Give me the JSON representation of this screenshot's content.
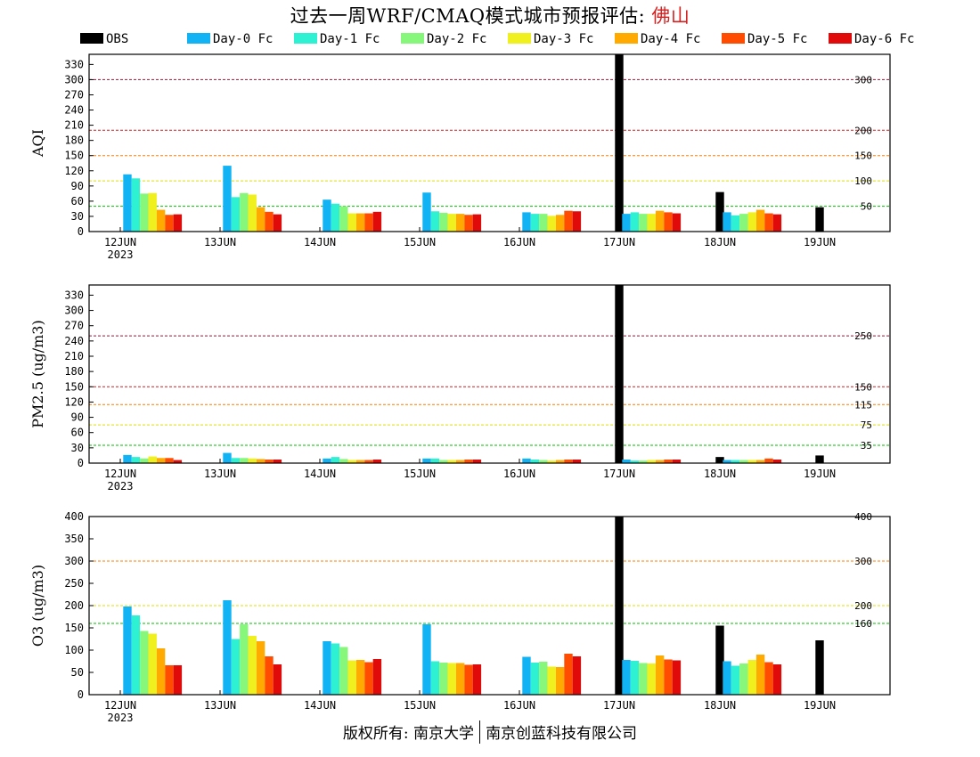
{
  "title": {
    "prefix": "过去一周WRF/CMAQ模式城市预报评估: ",
    "city": "佛山"
  },
  "footer": {
    "left": "版权所有: 南京大学",
    "right": "南京创蓝科技有限公司"
  },
  "colors": {
    "OBS": "#000000",
    "Day-0 Fc": "#12b3f5",
    "Day-1 Fc": "#2ef0d2",
    "Day-2 Fc": "#86f77a",
    "Day-3 Fc": "#f0f01e",
    "Day-4 Fc": "#ffaa00",
    "Day-5 Fc": "#ff4c00",
    "Day-6 Fc": "#e00a0a"
  },
  "legend": [
    "OBS",
    "Day-0 Fc",
    "Day-1 Fc",
    "Day-2 Fc",
    "Day-3 Fc",
    "Day-4 Fc",
    "Day-5 Fc",
    "Day-6 Fc"
  ],
  "chart_data": [
    {
      "type": "bar",
      "ylabel": "AQI",
      "ylim": [
        0,
        350
      ],
      "yticks": [
        0,
        30,
        60,
        90,
        120,
        150,
        180,
        210,
        240,
        270,
        300,
        330
      ],
      "categories": [
        "12JUN",
        "13JUN",
        "14JUN",
        "15JUN",
        "16JUN",
        "17JUN",
        "18JUN",
        "19JUN"
      ],
      "year_label": "2023",
      "ref_lines": [
        {
          "value": 300,
          "label": "300",
          "color": "#8b1a3a"
        },
        {
          "value": 200,
          "label": "200",
          "color": "#d02020"
        },
        {
          "value": 150,
          "label": "150",
          "color": "#ff7f00"
        },
        {
          "value": 100,
          "label": "100",
          "color": "#e0e000"
        },
        {
          "value": 50,
          "label": "50",
          "color": "#00c000"
        }
      ],
      "series": [
        {
          "name": "OBS",
          "values": [
            null,
            null,
            null,
            null,
            null,
            360,
            78,
            48
          ]
        },
        {
          "name": "Day-0 Fc",
          "values": [
            113,
            130,
            63,
            77,
            38,
            35,
            38,
            null
          ]
        },
        {
          "name": "Day-1 Fc",
          "values": [
            105,
            68,
            55,
            40,
            35,
            38,
            32,
            null
          ]
        },
        {
          "name": "Day-2 Fc",
          "values": [
            75,
            76,
            50,
            37,
            35,
            35,
            35,
            null
          ]
        },
        {
          "name": "Day-3 Fc",
          "values": [
            76,
            73,
            36,
            35,
            31,
            35,
            38,
            null
          ]
        },
        {
          "name": "Day-4 Fc",
          "values": [
            43,
            48,
            36,
            35,
            33,
            41,
            43,
            null
          ]
        },
        {
          "name": "Day-5 Fc",
          "values": [
            33,
            39,
            36,
            33,
            41,
            38,
            36,
            null
          ]
        },
        {
          "name": "Day-6 Fc",
          "values": [
            34,
            34,
            39,
            34,
            40,
            36,
            34,
            null
          ]
        }
      ]
    },
    {
      "type": "bar",
      "ylabel": "PM2.5 (ug/m3)",
      "ylim": [
        0,
        350
      ],
      "yticks": [
        0,
        30,
        60,
        90,
        120,
        150,
        180,
        210,
        240,
        270,
        300,
        330
      ],
      "categories": [
        "12JUN",
        "13JUN",
        "14JUN",
        "15JUN",
        "16JUN",
        "17JUN",
        "18JUN",
        "19JUN"
      ],
      "year_label": "2023",
      "ref_lines": [
        {
          "value": 250,
          "label": "250",
          "color": "#8b1a3a"
        },
        {
          "value": 150,
          "label": "150",
          "color": "#d02020"
        },
        {
          "value": 115,
          "label": "115",
          "color": "#ff7f00"
        },
        {
          "value": 75,
          "label": "75",
          "color": "#e0e000"
        },
        {
          "value": 35,
          "label": "35",
          "color": "#00c000"
        }
      ],
      "series": [
        {
          "name": "OBS",
          "values": [
            null,
            null,
            null,
            null,
            null,
            360,
            12,
            15
          ]
        },
        {
          "name": "Day-0 Fc",
          "values": [
            16,
            20,
            9,
            9,
            9,
            7,
            6,
            null
          ]
        },
        {
          "name": "Day-1 Fc",
          "values": [
            12,
            10,
            12,
            9,
            7,
            5,
            6,
            null
          ]
        },
        {
          "name": "Day-2 Fc",
          "values": [
            9,
            10,
            8,
            6,
            6,
            5,
            6,
            null
          ]
        },
        {
          "name": "Day-3 Fc",
          "values": [
            13,
            9,
            6,
            6,
            5,
            6,
            6,
            null
          ]
        },
        {
          "name": "Day-4 Fc",
          "values": [
            10,
            8,
            6,
            6,
            6,
            6,
            6,
            null
          ]
        },
        {
          "name": "Day-5 Fc",
          "values": [
            10,
            7,
            6,
            7,
            7,
            7,
            9,
            null
          ]
        },
        {
          "name": "Day-6 Fc",
          "values": [
            6,
            7,
            7,
            7,
            7,
            7,
            7,
            null
          ]
        }
      ]
    },
    {
      "type": "bar",
      "ylabel": "O3 (ug/m3)",
      "ylim": [
        0,
        400
      ],
      "yticks": [
        0,
        50,
        100,
        150,
        200,
        250,
        300,
        350,
        400
      ],
      "categories": [
        "12JUN",
        "13JUN",
        "14JUN",
        "15JUN",
        "16JUN",
        "17JUN",
        "18JUN",
        "19JUN"
      ],
      "year_label": "2023",
      "ref_lines": [
        {
          "value": 400,
          "label": "400",
          "color": "#d02020"
        },
        {
          "value": 300,
          "label": "300",
          "color": "#ff7f00"
        },
        {
          "value": 200,
          "label": "200",
          "color": "#e0e000"
        },
        {
          "value": 160,
          "label": "160",
          "color": "#00c000"
        }
      ],
      "series": [
        {
          "name": "OBS",
          "values": [
            null,
            null,
            null,
            null,
            null,
            400,
            155,
            122
          ]
        },
        {
          "name": "Day-0 Fc",
          "values": [
            198,
            212,
            120,
            158,
            85,
            78,
            75,
            null
          ]
        },
        {
          "name": "Day-1 Fc",
          "values": [
            178,
            125,
            115,
            75,
            72,
            76,
            65,
            null
          ]
        },
        {
          "name": "Day-2 Fc",
          "values": [
            143,
            158,
            107,
            72,
            74,
            71,
            70,
            null
          ]
        },
        {
          "name": "Day-3 Fc",
          "values": [
            137,
            132,
            77,
            71,
            63,
            70,
            78,
            null
          ]
        },
        {
          "name": "Day-4 Fc",
          "values": [
            104,
            120,
            78,
            71,
            62,
            88,
            90,
            null
          ]
        },
        {
          "name": "Day-5 Fc",
          "values": [
            66,
            86,
            73,
            67,
            92,
            79,
            73,
            null
          ]
        },
        {
          "name": "Day-6 Fc",
          "values": [
            66,
            68,
            80,
            68,
            86,
            77,
            68,
            null
          ]
        }
      ]
    }
  ]
}
